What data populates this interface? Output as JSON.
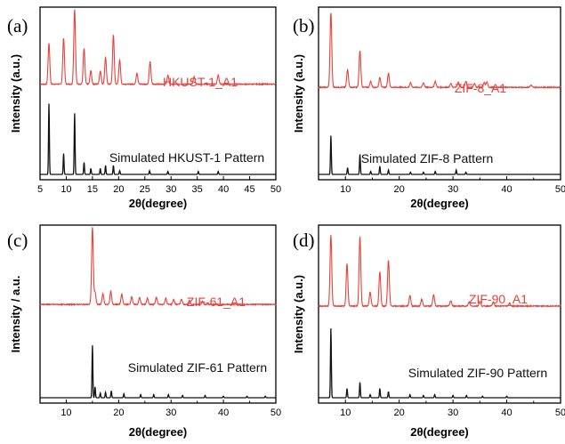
{
  "chart_data": [
    {
      "panel": "(a)",
      "type": "line",
      "xlabel": "2θ(degree)",
      "ylabel": "Intensity (a.u.)",
      "xlim": [
        5,
        50
      ],
      "xticks": [
        5,
        10,
        15,
        20,
        25,
        30,
        35,
        40,
        45,
        50
      ],
      "y_tick_labels": false,
      "series": [
        {
          "name": "HKUST-1_A1",
          "color": "#e8413c",
          "offset": 0.56,
          "peaks": [
            [
              6.7,
              0.55
            ],
            [
              9.5,
              0.62
            ],
            [
              11.6,
              1.0
            ],
            [
              13.4,
              0.48
            ],
            [
              14.7,
              0.18
            ],
            [
              16.5,
              0.18
            ],
            [
              17.5,
              0.36
            ],
            [
              19.0,
              0.66
            ],
            [
              20.2,
              0.33
            ],
            [
              23.5,
              0.15
            ],
            [
              26.0,
              0.3
            ],
            [
              29.4,
              0.12
            ],
            [
              34.4,
              0.1
            ],
            [
              39.0,
              0.12
            ]
          ]
        },
        {
          "name": "Simulated HKUST-1 Pattern",
          "color": "#111111",
          "offset": 0.0,
          "peaks": [
            [
              6.7,
              0.95
            ],
            [
              9.5,
              0.28
            ],
            [
              11.6,
              0.82
            ],
            [
              13.4,
              0.16
            ],
            [
              14.7,
              0.08
            ],
            [
              16.5,
              0.08
            ],
            [
              17.5,
              0.12
            ],
            [
              19.0,
              0.12
            ],
            [
              20.2,
              0.05
            ],
            [
              25.9,
              0.05
            ],
            [
              29.4,
              0.04
            ],
            [
              35.2,
              0.04
            ],
            [
              39.0,
              0.04
            ]
          ]
        }
      ]
    },
    {
      "panel": "(b)",
      "type": "line",
      "xlabel": "2θ(degree)",
      "ylabel": "Intensity (a.u.)",
      "xlim": [
        5,
        50
      ],
      "xticks": [
        10,
        20,
        30,
        40,
        50
      ],
      "y_tick_labels": false,
      "series": [
        {
          "name": "ZIF-8_A1",
          "color": "#e8413c",
          "offset": 0.54,
          "peaks": [
            [
              7.3,
              1.0
            ],
            [
              10.4,
              0.24
            ],
            [
              12.7,
              0.49
            ],
            [
              14.7,
              0.08
            ],
            [
              16.4,
              0.13
            ],
            [
              18.0,
              0.19
            ],
            [
              22.1,
              0.06
            ],
            [
              24.5,
              0.06
            ],
            [
              26.7,
              0.08
            ],
            [
              29.6,
              0.05
            ],
            [
              31.0,
              0.07
            ],
            [
              32.4,
              0.08
            ],
            [
              34.0,
              0.05
            ],
            [
              35.8,
              0.06
            ],
            [
              36.3,
              0.07
            ],
            [
              44.5,
              0.03
            ]
          ]
        },
        {
          "name": "Simulated ZIF-8 Pattern",
          "color": "#111111",
          "offset": 0.0,
          "peaks": [
            [
              7.3,
              0.52
            ],
            [
              10.4,
              0.09
            ],
            [
              12.7,
              0.27
            ],
            [
              14.7,
              0.04
            ],
            [
              16.4,
              0.11
            ],
            [
              18.0,
              0.06
            ],
            [
              22.1,
              0.03
            ],
            [
              24.5,
              0.03
            ],
            [
              26.7,
              0.04
            ],
            [
              30.6,
              0.06
            ],
            [
              32.4,
              0.03
            ]
          ]
        }
      ]
    },
    {
      "panel": "(c)",
      "type": "line",
      "xlabel": "2θ(degree)",
      "ylabel": "Intensity / a.u.",
      "xlim": [
        5,
        50
      ],
      "xticks": [
        10,
        20,
        30,
        40,
        50
      ],
      "y_tick_labels": false,
      "series": [
        {
          "name": "ZIF-61_A1",
          "color": "#e8413c",
          "offset": 0.56,
          "peaks": [
            [
              15.0,
              1.0
            ],
            [
              15.5,
              0.16
            ],
            [
              17.0,
              0.14
            ],
            [
              18.5,
              0.17
            ],
            [
              20.6,
              0.13
            ],
            [
              22.5,
              0.1
            ],
            [
              24.0,
              0.09
            ],
            [
              25.5,
              0.08
            ],
            [
              27.2,
              0.09
            ],
            [
              29.0,
              0.08
            ],
            [
              30.5,
              0.06
            ],
            [
              32.0,
              0.07
            ],
            [
              33.5,
              0.05
            ],
            [
              36.0,
              0.04
            ]
          ]
        },
        {
          "name": "Simulated ZIF-61 Pattern",
          "color": "#111111",
          "offset": 0.0,
          "peaks": [
            [
              15.0,
              0.68
            ],
            [
              15.5,
              0.14
            ],
            [
              16.5,
              0.06
            ],
            [
              17.5,
              0.07
            ],
            [
              18.6,
              0.09
            ],
            [
              21.0,
              0.05
            ],
            [
              24.2,
              0.04
            ],
            [
              26.7,
              0.04
            ],
            [
              29.5,
              0.04
            ],
            [
              32.2,
              0.03
            ],
            [
              36.5,
              0.03
            ],
            [
              40.0,
              0.02
            ],
            [
              44.5,
              0.02
            ],
            [
              48.0,
              0.02
            ]
          ]
        }
      ]
    },
    {
      "panel": "(d)",
      "type": "line",
      "xlabel": "2θ(degree)",
      "ylabel": "Intensity (a.u.)",
      "xlim": [
        5,
        50
      ],
      "xticks": [
        10,
        20,
        30,
        40,
        50
      ],
      "y_tick_labels": false,
      "series": [
        {
          "name": "ZIF-90_A1",
          "color": "#e8413c",
          "offset": 0.55,
          "peaks": [
            [
              7.3,
              0.92
            ],
            [
              10.3,
              0.55
            ],
            [
              12.7,
              0.9
            ],
            [
              14.6,
              0.18
            ],
            [
              16.4,
              0.45
            ],
            [
              18.0,
              0.6
            ],
            [
              22.0,
              0.14
            ],
            [
              24.2,
              0.09
            ],
            [
              26.4,
              0.15
            ],
            [
              29.6,
              0.07
            ],
            [
              33.0,
              0.05
            ],
            [
              35.0,
              0.06
            ],
            [
              37.5,
              0.05
            ],
            [
              40.5,
              0.04
            ]
          ]
        },
        {
          "name": "Simulated ZIF-90 Pattern",
          "color": "#111111",
          "offset": 0.0,
          "peaks": [
            [
              7.3,
              0.9
            ],
            [
              10.3,
              0.12
            ],
            [
              12.7,
              0.2
            ],
            [
              14.6,
              0.04
            ],
            [
              16.4,
              0.12
            ],
            [
              18.0,
              0.08
            ],
            [
              22.0,
              0.04
            ],
            [
              24.5,
              0.03
            ],
            [
              26.6,
              0.04
            ],
            [
              30.0,
              0.03
            ],
            [
              32.5,
              0.03
            ],
            [
              35.5,
              0.02
            ],
            [
              40.0,
              0.02
            ]
          ]
        }
      ]
    }
  ]
}
